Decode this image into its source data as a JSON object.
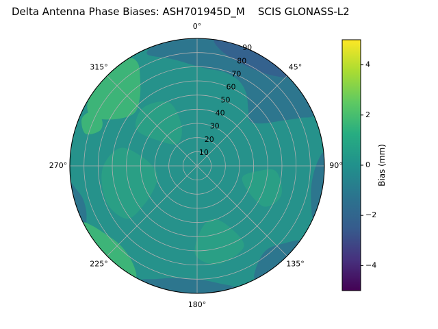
{
  "chart_data": {
    "type": "polar_contour",
    "title": "Delta Antenna Phase Biases: ASH701945D_M    SCIS GLONASS-L2",
    "angular_ticks": [
      {
        "angle": 0,
        "label": "0°"
      },
      {
        "angle": 45,
        "label": "45°"
      },
      {
        "angle": 90,
        "label": "90°"
      },
      {
        "angle": 135,
        "label": "135°"
      },
      {
        "angle": 180,
        "label": "180°"
      },
      {
        "angle": 225,
        "label": "225°"
      },
      {
        "angle": 270,
        "label": "270°"
      },
      {
        "angle": 315,
        "label": "315°"
      }
    ],
    "radial_ticks": [
      {
        "value": 10,
        "label": "10"
      },
      {
        "value": 20,
        "label": "20"
      },
      {
        "value": 30,
        "label": "30"
      },
      {
        "value": 40,
        "label": "40"
      },
      {
        "value": 50,
        "label": "50"
      },
      {
        "value": 60,
        "label": "60"
      },
      {
        "value": 70,
        "label": "70"
      },
      {
        "value": 80,
        "label": "80"
      },
      {
        "value": 90,
        "label": "90"
      }
    ],
    "radial_range": [
      0,
      90
    ],
    "radial_label_angle_deg": 22.5,
    "colorbar": {
      "label": "Bias (mm)",
      "range": [
        -5,
        5
      ],
      "ticks": [
        {
          "value": -4,
          "label": "−4"
        },
        {
          "value": -2,
          "label": "−2"
        },
        {
          "value": 0,
          "label": "0"
        },
        {
          "value": 2,
          "label": "2"
        },
        {
          "value": 4,
          "label": "4"
        }
      ],
      "colormap": "viridis",
      "colormap_stops": [
        {
          "t": 0.0,
          "c": "#440154"
        },
        {
          "t": 0.125,
          "c": "#46327e"
        },
        {
          "t": 0.25,
          "c": "#365c8d"
        },
        {
          "t": 0.375,
          "c": "#2b748e"
        },
        {
          "t": 0.5,
          "c": "#21918c"
        },
        {
          "t": 0.625,
          "c": "#27ad81"
        },
        {
          "t": 0.75,
          "c": "#5ec962"
        },
        {
          "t": 0.875,
          "c": "#aadc32"
        },
        {
          "t": 1.0,
          "c": "#fde725"
        }
      ]
    },
    "grid_color": "#b0b0b0",
    "base": {
      "level_mm": 0.25,
      "color": "#26928b"
    },
    "regions": [
      {
        "name": "mottle-left",
        "level_mm": 0.75,
        "color": "#2a9f85",
        "points": [
          [
            233,
            62
          ],
          [
            248,
            69
          ],
          [
            268,
            67
          ],
          [
            283,
            56
          ],
          [
            279,
            39
          ],
          [
            261,
            29
          ],
          [
            244,
            33
          ],
          [
            234,
            46
          ]
        ]
      },
      {
        "name": "mottle-bottom",
        "level_mm": 0.75,
        "color": "#2a9f85",
        "points": [
          [
            150,
            66
          ],
          [
            168,
            71
          ],
          [
            181,
            63
          ],
          [
            177,
            46
          ],
          [
            164,
            39
          ],
          [
            152,
            49
          ]
        ]
      },
      {
        "name": "mottle-right",
        "level_mm": 0.75,
        "color": "#2a9f85",
        "points": [
          [
            94,
            56
          ],
          [
            109,
            63
          ],
          [
            121,
            56
          ],
          [
            117,
            41
          ],
          [
            104,
            33
          ],
          [
            95,
            43
          ]
        ]
      },
      {
        "name": "mottle-upper-left",
        "level_mm": 0.75,
        "color": "#2a9f85",
        "points": [
          [
            301,
            50
          ],
          [
            317,
            56
          ],
          [
            336,
            49
          ],
          [
            339,
            31
          ],
          [
            320,
            21
          ],
          [
            304,
            31
          ]
        ]
      },
      {
        "name": "top-negative-band",
        "level_mm": -1.0,
        "color": "#2d768e",
        "points": [
          [
            336,
            86
          ],
          [
            346,
            78
          ],
          [
            356,
            72
          ],
          [
            6,
            69
          ],
          [
            16,
            69
          ],
          [
            26,
            67
          ],
          [
            34,
            62
          ],
          [
            42,
            54
          ],
          [
            50,
            49
          ],
          [
            57,
            55
          ],
          [
            62,
            68
          ],
          [
            65,
            80
          ],
          [
            66,
            90
          ],
          [
            52,
            90
          ],
          [
            36,
            90
          ],
          [
            20,
            90
          ],
          [
            4,
            90
          ],
          [
            350,
            90
          ],
          [
            340,
            90
          ]
        ]
      },
      {
        "name": "top-negative-core",
        "level_mm": -1.75,
        "color": "#34628e",
        "points": [
          [
            8,
            90
          ],
          [
            12,
            83
          ],
          [
            22,
            79
          ],
          [
            34,
            80
          ],
          [
            42,
            85
          ],
          [
            45,
            90
          ],
          [
            32,
            90
          ],
          [
            20,
            90
          ]
        ]
      },
      {
        "name": "right-negative",
        "level_mm": -1.0,
        "color": "#2d768e",
        "points": [
          [
            84,
            90
          ],
          [
            90,
            84
          ],
          [
            100,
            82
          ],
          [
            110,
            86
          ],
          [
            114,
            90
          ],
          [
            104,
            90
          ],
          [
            94,
            90
          ]
        ]
      },
      {
        "name": "bottom-right-negative",
        "level_mm": -1.0,
        "color": "#2d768e",
        "points": [
          [
            126,
            90
          ],
          [
            132,
            82
          ],
          [
            140,
            77
          ],
          [
            148,
            81
          ],
          [
            153,
            90
          ],
          [
            143,
            90
          ],
          [
            134,
            90
          ]
        ]
      },
      {
        "name": "bottom-negative",
        "level_mm": -1.0,
        "color": "#2d768e",
        "points": [
          [
            163,
            90
          ],
          [
            170,
            84
          ],
          [
            180,
            80
          ],
          [
            192,
            81
          ],
          [
            200,
            85
          ],
          [
            206,
            90
          ],
          [
            192,
            90
          ],
          [
            178,
            90
          ]
        ]
      },
      {
        "name": "left-bottom-negative",
        "level_mm": -1.0,
        "color": "#2d768e",
        "points": [
          [
            242,
            90
          ],
          [
            247,
            85
          ],
          [
            254,
            84
          ],
          [
            259,
            87
          ],
          [
            262,
            90
          ],
          [
            253,
            90
          ]
        ]
      },
      {
        "name": "green-315",
        "level_mm": 1.5,
        "color": "#3db478",
        "points": [
          [
            295,
            80
          ],
          [
            300,
            66
          ],
          [
            310,
            58
          ],
          [
            320,
            63
          ],
          [
            327,
            74
          ],
          [
            330,
            84
          ],
          [
            327,
            90
          ],
          [
            315,
            90
          ],
          [
            303,
            90
          ],
          [
            297,
            87
          ]
        ]
      },
      {
        "name": "green-290",
        "level_mm": 1.5,
        "color": "#3db478",
        "points": [
          [
            286,
            82
          ],
          [
            290,
            73
          ],
          [
            296,
            75
          ],
          [
            297,
            84
          ],
          [
            292,
            88
          ]
        ]
      },
      {
        "name": "green-225",
        "level_mm": 1.5,
        "color": "#3db478",
        "points": [
          [
            209,
            90
          ],
          [
            214,
            82
          ],
          [
            224,
            78
          ],
          [
            234,
            81
          ],
          [
            241,
            86
          ],
          [
            243,
            90
          ],
          [
            232,
            90
          ],
          [
            220,
            90
          ]
        ]
      }
    ]
  }
}
